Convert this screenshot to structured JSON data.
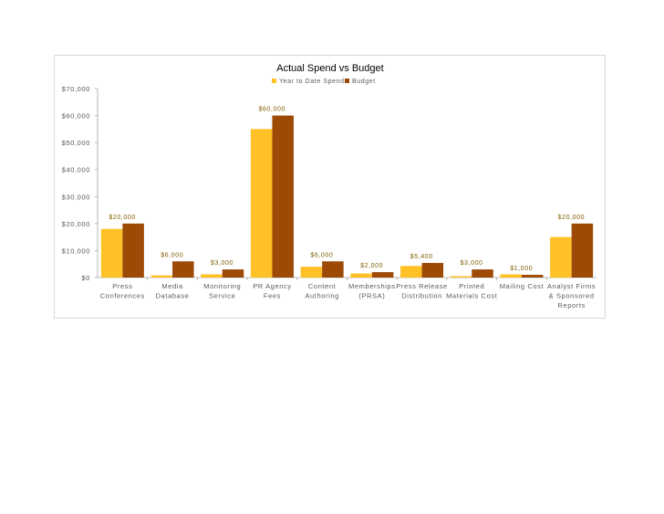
{
  "chart_data": {
    "type": "bar",
    "title": "Actual Spend vs Budget",
    "xlabel": "",
    "ylabel": "",
    "ylim": [
      0,
      70000
    ],
    "y_ticks": [
      "$0",
      "$10,000",
      "$20,000",
      "$30,000",
      "$40,000",
      "$50,000",
      "$60,000",
      "$70,000"
    ],
    "y_tick_values": [
      0,
      10000,
      20000,
      30000,
      40000,
      50000,
      60000,
      70000
    ],
    "legend_position": "top-center",
    "grid": false,
    "categories": [
      [
        "Press",
        "Conferences"
      ],
      [
        "Media",
        "Database"
      ],
      [
        "Monitoring",
        "Service"
      ],
      [
        "PR Agency",
        "Fees"
      ],
      [
        "Content",
        "Authoring"
      ],
      [
        "Memberships",
        "(PRSA)"
      ],
      [
        "Press Release",
        "Distribution"
      ],
      [
        "Printed",
        "Materials Cost"
      ],
      [
        "Mailing Cost"
      ],
      [
        "Analyst Firms",
        "& Sponsored",
        "Reports"
      ]
    ],
    "series": [
      {
        "name": "Year to Date Spend",
        "color": "#ffc125",
        "values": [
          18000,
          800,
          1200,
          55000,
          4000,
          1500,
          4300,
          500,
          1200,
          15000
        ]
      },
      {
        "name": "Budget",
        "color": "#9c4a06",
        "values": [
          20000,
          6000,
          3000,
          60000,
          6000,
          2000,
          5400,
          3000,
          1000,
          20000
        ],
        "data_labels": [
          "$20,000",
          "$6,000",
          "$3,000",
          "$60,000",
          "$6,000",
          "$2,000",
          "$5,400",
          "$3,000",
          "$1,000",
          "$20,000"
        ]
      }
    ]
  }
}
